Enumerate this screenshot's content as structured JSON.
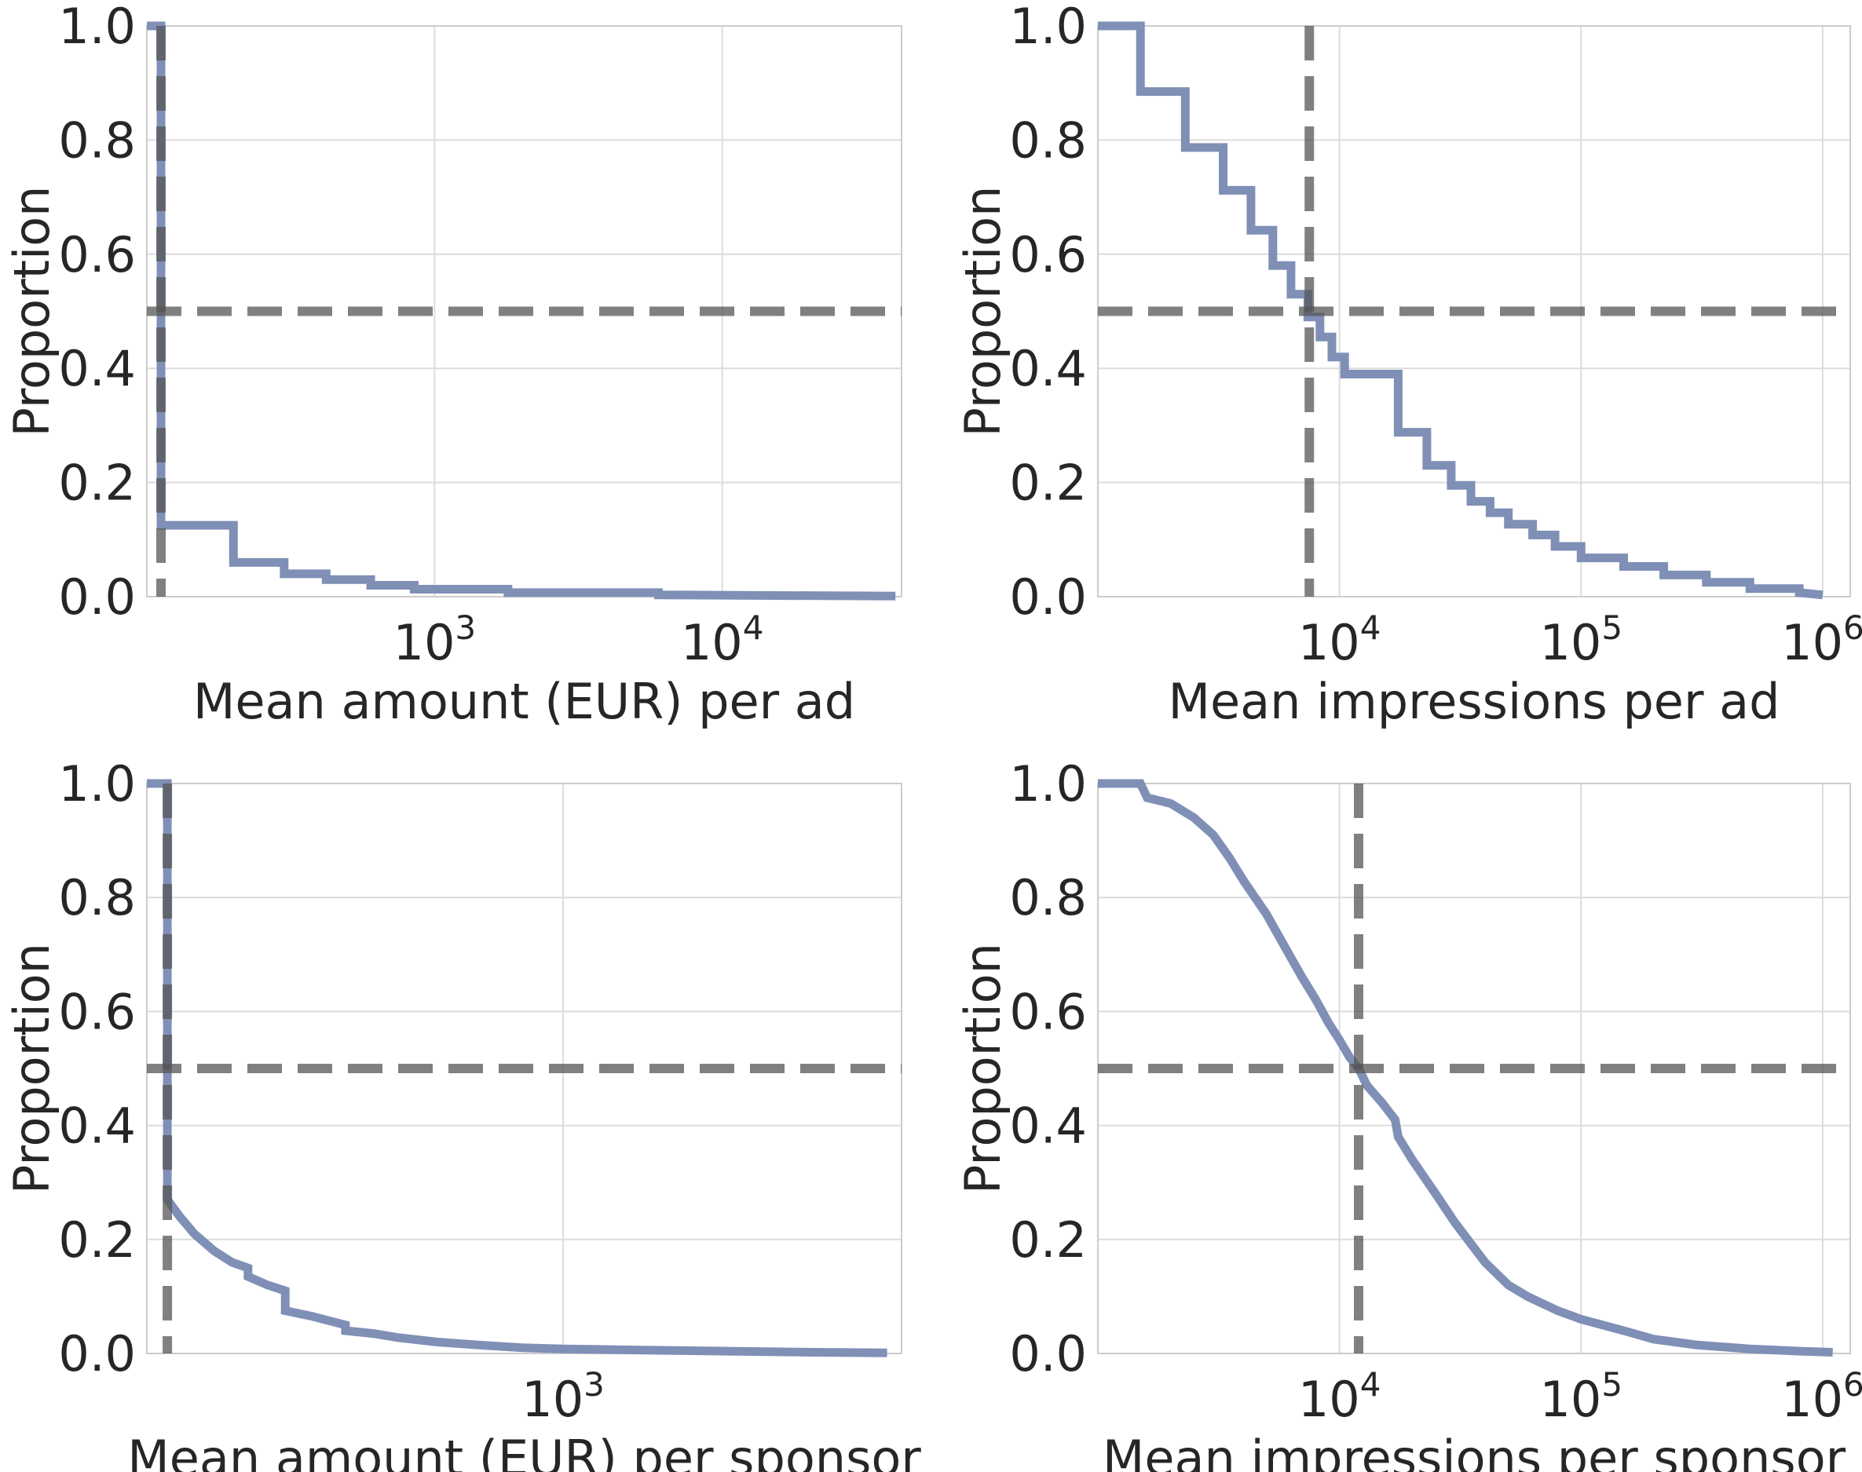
{
  "chart_data": [
    {
      "id": "amount-per-ad",
      "type": "line",
      "xlabel": "Mean amount (EUR) per ad",
      "ylabel": "Proportion",
      "xscale": "log",
      "xlim": [
        100,
        42000
      ],
      "ylim": [
        0.0,
        1.0
      ],
      "x_ticks": [
        {
          "value": 1000,
          "base": "10",
          "exp": "3"
        },
        {
          "value": 10000,
          "base": "10",
          "exp": "4"
        }
      ],
      "y_ticks": [
        "0.0",
        "0.2",
        "0.4",
        "0.6",
        "0.8",
        "1.0"
      ],
      "grid": true,
      "line_color": "#7f8fb6",
      "reference_color": "#555555",
      "hline": 0.5,
      "vline": 112,
      "series": [
        {
          "x": [
            100,
            112,
            112,
            200,
            200,
            300,
            300,
            420,
            420,
            600,
            600,
            850,
            850,
            1800,
            1800,
            6000,
            6000,
            40000
          ],
          "y": [
            1.0,
            1.0,
            0.125,
            0.125,
            0.06,
            0.06,
            0.04,
            0.04,
            0.03,
            0.03,
            0.02,
            0.02,
            0.013,
            0.013,
            0.007,
            0.007,
            0.003,
            0.001
          ]
        }
      ]
    },
    {
      "id": "impressions-per-ad",
      "type": "line",
      "xlabel": "Mean impressions per ad",
      "ylabel": "Proportion",
      "xscale": "log",
      "xlim": [
        1000,
        1300000
      ],
      "ylim": [
        0.0,
        1.0
      ],
      "x_ticks": [
        {
          "value": 10000,
          "base": "10",
          "exp": "4"
        },
        {
          "value": 100000,
          "base": "10",
          "exp": "5"
        },
        {
          "value": 1000000,
          "base": "10",
          "exp": "6"
        }
      ],
      "y_ticks": [
        "0.0",
        "0.2",
        "0.4",
        "0.6",
        "0.8",
        "1.0"
      ],
      "grid": true,
      "line_color": "#7f8fb6",
      "reference_color": "#555555",
      "hline": 0.5,
      "vline": 7500,
      "series": [
        {
          "x": [
            1000,
            1500,
            1500,
            2300,
            2300,
            3300,
            3300,
            4300,
            4300,
            5300,
            5300,
            6300,
            6300,
            7400,
            7400,
            8300,
            8300,
            9300,
            9300,
            10500,
            10500,
            17500,
            17500,
            23000,
            23000,
            29000,
            29000,
            35000,
            35000,
            42000,
            42000,
            50000,
            50000,
            63000,
            63000,
            78000,
            78000,
            100000,
            100000,
            150000,
            150000,
            220000,
            220000,
            330000,
            330000,
            500000,
            500000,
            800000,
            800000,
            1000000
          ],
          "y": [
            1.0,
            1.0,
            0.885,
            0.885,
            0.787,
            0.787,
            0.712,
            0.712,
            0.642,
            0.642,
            0.58,
            0.58,
            0.53,
            0.53,
            0.49,
            0.49,
            0.455,
            0.455,
            0.42,
            0.42,
            0.39,
            0.39,
            0.288,
            0.288,
            0.23,
            0.23,
            0.195,
            0.195,
            0.167,
            0.167,
            0.147,
            0.147,
            0.127,
            0.127,
            0.108,
            0.108,
            0.088,
            0.088,
            0.068,
            0.068,
            0.053,
            0.053,
            0.038,
            0.038,
            0.025,
            0.025,
            0.014,
            0.014,
            0.007,
            0.003
          ]
        }
      ]
    },
    {
      "id": "amount-per-sponsor",
      "type": "line",
      "xlabel": "Mean amount (EUR) per sponsor",
      "ylabel": "Proportion",
      "xscale": "log",
      "xlim": [
        100,
        6500
      ],
      "ylim": [
        0.0,
        1.0
      ],
      "x_ticks": [
        {
          "value": 1000,
          "base": "10",
          "exp": "3"
        }
      ],
      "y_ticks": [
        "0.0",
        "0.2",
        "0.4",
        "0.6",
        "0.8",
        "1.0"
      ],
      "grid": true,
      "line_color": "#7f8fb6",
      "reference_color": "#555555",
      "hline": 0.5,
      "vline": 112,
      "series": [
        {
          "x": [
            100,
            112,
            112,
            120,
            130,
            145,
            160,
            175,
            175,
            195,
            215,
            215,
            250,
            300,
            300,
            350,
            400,
            500,
            650,
            800,
            1000,
            1500,
            2500,
            4000,
            6000
          ],
          "y": [
            1.0,
            1.0,
            0.27,
            0.24,
            0.21,
            0.18,
            0.16,
            0.15,
            0.135,
            0.12,
            0.11,
            0.075,
            0.065,
            0.05,
            0.04,
            0.035,
            0.028,
            0.02,
            0.014,
            0.01,
            0.008,
            0.006,
            0.004,
            0.002,
            0.001
          ]
        }
      ]
    },
    {
      "id": "impressions-per-sponsor",
      "type": "line",
      "xlabel": "Mean impressions per sponsor",
      "ylabel": "Proportion",
      "xscale": "log",
      "xlim": [
        1000,
        1300000
      ],
      "ylim": [
        0.0,
        1.0
      ],
      "x_ticks": [
        {
          "value": 10000,
          "base": "10",
          "exp": "4"
        },
        {
          "value": 100000,
          "base": "10",
          "exp": "5"
        },
        {
          "value": 1000000,
          "base": "10",
          "exp": "6"
        }
      ],
      "y_ticks": [
        "0.0",
        "0.2",
        "0.4",
        "0.6",
        "0.8",
        "1.0"
      ],
      "grid": true,
      "line_color": "#7f8fb6",
      "reference_color": "#555555",
      "hline": 0.5,
      "vline": 12000,
      "series": [
        {
          "x": [
            1000,
            1500,
            1600,
            2000,
            2500,
            3000,
            3500,
            4000,
            5000,
            6000,
            7000,
            8000,
            9000,
            10000,
            11000,
            12000,
            13000,
            15000,
            17000,
            17500,
            20000,
            25000,
            30000,
            40000,
            50000,
            60000,
            80000,
            100000,
            150000,
            200000,
            300000,
            500000,
            800000,
            1100000
          ],
          "y": [
            1.0,
            1.0,
            0.975,
            0.965,
            0.94,
            0.91,
            0.87,
            0.83,
            0.77,
            0.71,
            0.66,
            0.62,
            0.58,
            0.55,
            0.52,
            0.5,
            0.47,
            0.44,
            0.41,
            0.38,
            0.34,
            0.28,
            0.23,
            0.16,
            0.12,
            0.1,
            0.075,
            0.06,
            0.04,
            0.025,
            0.015,
            0.008,
            0.004,
            0.002
          ]
        }
      ]
    }
  ]
}
